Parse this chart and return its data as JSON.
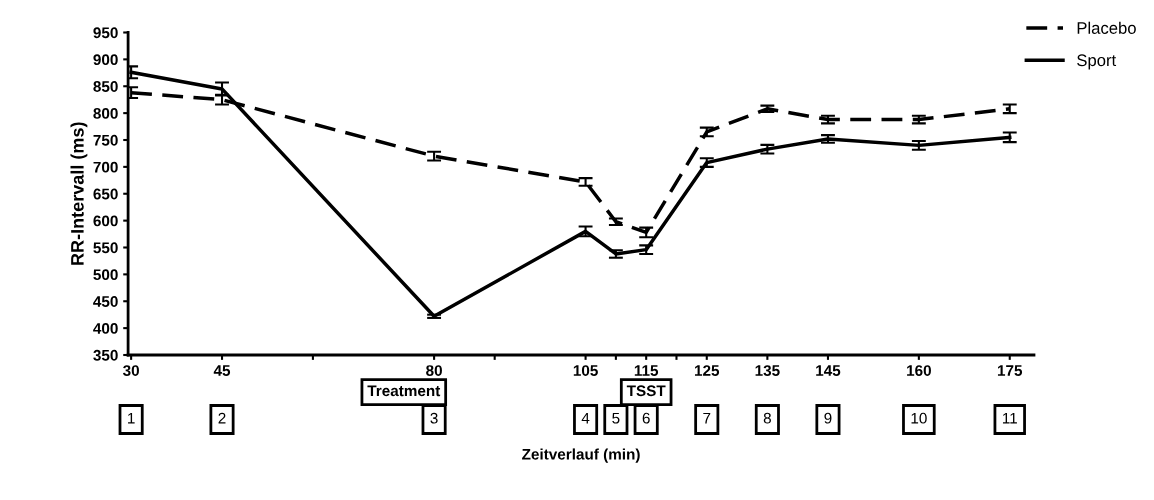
{
  "chart_data": {
    "type": "line",
    "xlabel": "Zeitverlauf (min)",
    "ylabel": "RR-Intervall (ms)",
    "x": [
      30,
      45,
      80,
      105,
      110,
      115,
      125,
      135,
      145,
      160,
      175
    ],
    "series": [
      {
        "name": "Placebo",
        "color": "#000000",
        "line_style": "dashed",
        "values": [
          838,
          825,
          720,
          672,
          598,
          578,
          765,
          808,
          788,
          788,
          808
        ],
        "errors": [
          10,
          9,
          8,
          7,
          6,
          9,
          8,
          6,
          7,
          7,
          8
        ]
      },
      {
        "name": "Sport",
        "color": "#000000",
        "line_style": "solid",
        "values": [
          876,
          845,
          422,
          580,
          538,
          546,
          708,
          733,
          752,
          740,
          755
        ],
        "errors": [
          11,
          12,
          3,
          9,
          7,
          8,
          8,
          8,
          7,
          8,
          9
        ]
      }
    ],
    "xlim": [
      29.5,
      179
    ],
    "xticks": [
      30,
      45,
      {
        "value": 60,
        "label": null
      },
      80,
      {
        "value": 90,
        "label": null
      },
      105,
      {
        "value": 110,
        "label": null
      },
      115,
      {
        "value": 120,
        "label": null
      },
      125,
      135,
      145,
      160,
      175
    ],
    "ylim": [
      350,
      950
    ],
    "yticks": [
      350,
      400,
      450,
      500,
      550,
      600,
      650,
      700,
      750,
      800,
      850,
      900,
      950
    ],
    "grid": false,
    "legend": "top right",
    "marker": "none",
    "annotations": [
      "Treatment",
      "TSST",
      "1",
      "2",
      "3",
      "4",
      "5",
      "6",
      "7",
      "8",
      "9",
      "10",
      "11"
    ]
  }
}
